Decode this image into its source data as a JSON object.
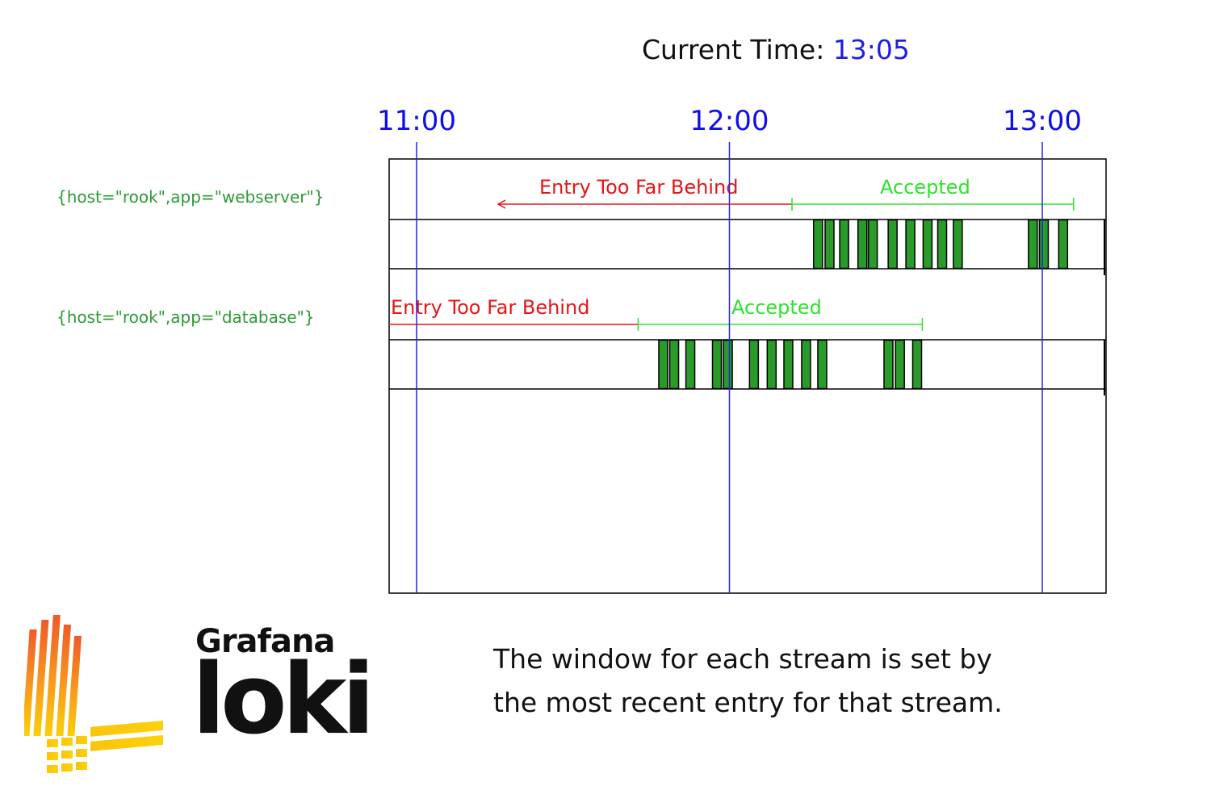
{
  "header": {
    "current_time_label": "Current Time:",
    "current_time_value": "13:05"
  },
  "ticks": [
    {
      "label": "11:00",
      "t": 660
    },
    {
      "label": "12:00",
      "t": 720
    },
    {
      "label": "13:00",
      "t": 780
    }
  ],
  "streams": [
    {
      "label": "{host=\"rook\",app=\"webserver\"}",
      "rejected_label": "Entry Too Far Behind",
      "accepted_label": "Accepted",
      "window_start": 732,
      "window_end": 786,
      "entries": [
        737,
        739.2,
        742,
        745.5,
        747.5,
        751.3,
        754.7,
        758,
        760.8,
        763.8,
        778.2,
        780.3,
        784
      ]
    },
    {
      "label": "{host=\"rook\",app=\"database\"}",
      "rejected_label": "Entry Too Far Behind",
      "accepted_label": "Accepted",
      "window_start": 702.5,
      "window_end": 757,
      "entries": [
        707.3,
        709.4,
        712.5,
        717.6,
        719.7,
        724.7,
        728.1,
        731.3,
        734.7,
        737.8,
        750.5,
        752.7,
        756
      ]
    }
  ],
  "caption": {
    "line1": "The window for each stream is set by",
    "line2": "the most recent entry for that stream."
  },
  "logo": {
    "brand": "Grafana",
    "product": "loki"
  },
  "colors": {
    "tick_line": "#2525e0",
    "entry_fill": "#2a9a2a",
    "rejected": "#e51515",
    "accepted": "#2fe02f"
  }
}
